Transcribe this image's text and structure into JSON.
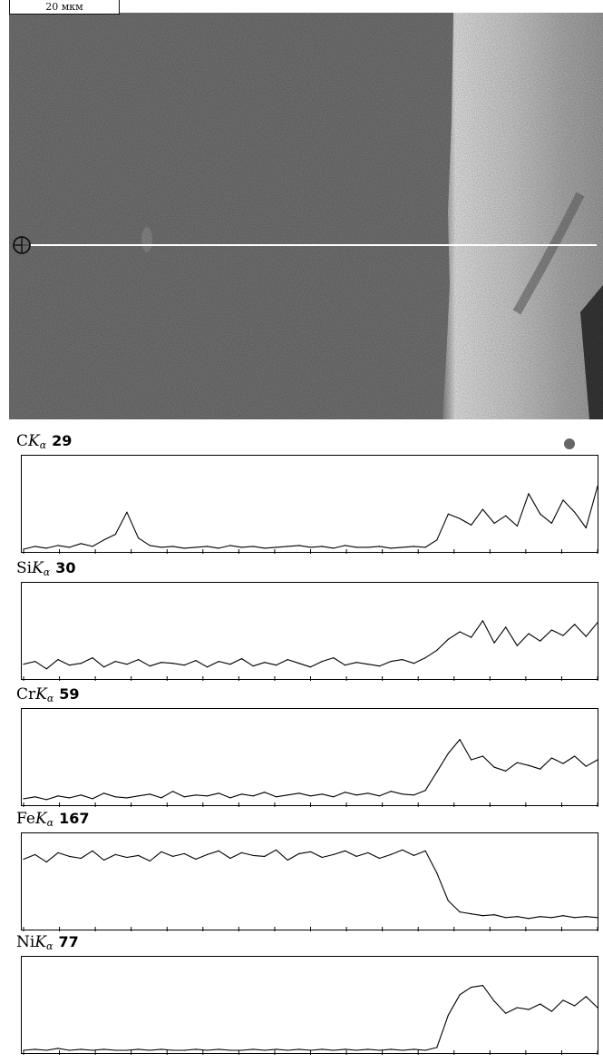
{
  "scale_bar": {
    "label": "20 мкм"
  },
  "colors": {
    "trace": "#000000",
    "scan_line": "#ffffff",
    "marker": "#666666"
  },
  "icons": {
    "scan_start": "crosshair-circle-icon",
    "marker": "dot-icon"
  },
  "chart_data": [
    {
      "type": "line",
      "element": "C",
      "line": "K",
      "line_sub": "α",
      "max_count": "29",
      "x": [
        0,
        2,
        4,
        6,
        8,
        10,
        12,
        14,
        16,
        18,
        20,
        22,
        24,
        26,
        28,
        30,
        32,
        34,
        36,
        38,
        40,
        42,
        44,
        46,
        48,
        50,
        52,
        54,
        56,
        58,
        60,
        62,
        64,
        66,
        68,
        70,
        72,
        74,
        76,
        78,
        80,
        82,
        84,
        86,
        88,
        90,
        92,
        94,
        96,
        98,
        100
      ],
      "values": [
        2,
        5,
        3,
        6,
        4,
        8,
        5,
        12,
        18,
        42,
        14,
        6,
        4,
        5,
        3,
        4,
        5,
        3,
        6,
        4,
        5,
        3,
        4,
        5,
        6,
        4,
        5,
        3,
        6,
        4,
        4,
        5,
        3,
        4,
        5,
        4,
        12,
        40,
        35,
        28,
        45,
        30,
        38,
        27,
        62,
        40,
        30,
        55,
        42,
        25,
        70
      ]
    },
    {
      "type": "line",
      "element": "Si",
      "line": "K",
      "line_sub": "α",
      "max_count": "30",
      "x": [
        0,
        2,
        4,
        6,
        8,
        10,
        12,
        14,
        16,
        18,
        20,
        22,
        24,
        26,
        28,
        30,
        32,
        34,
        36,
        38,
        40,
        42,
        44,
        46,
        48,
        50,
        52,
        54,
        56,
        58,
        60,
        62,
        64,
        66,
        68,
        70,
        72,
        74,
        76,
        78,
        80,
        82,
        84,
        86,
        88,
        90,
        92,
        94,
        96,
        98,
        100
      ],
      "values": [
        15,
        18,
        10,
        20,
        14,
        16,
        22,
        12,
        18,
        15,
        20,
        13,
        17,
        16,
        14,
        19,
        12,
        18,
        15,
        21,
        13,
        17,
        14,
        20,
        16,
        12,
        18,
        22,
        14,
        17,
        15,
        13,
        18,
        20,
        16,
        22,
        30,
        42,
        50,
        44,
        62,
        38,
        55,
        35,
        48,
        40,
        52,
        46,
        58,
        45,
        60
      ]
    },
    {
      "type": "line",
      "element": "Cr",
      "line": "K",
      "line_sub": "α",
      "max_count": "59",
      "x": [
        0,
        2,
        4,
        6,
        8,
        10,
        12,
        14,
        16,
        18,
        20,
        22,
        24,
        26,
        28,
        30,
        32,
        34,
        36,
        38,
        40,
        42,
        44,
        46,
        48,
        50,
        52,
        54,
        56,
        58,
        60,
        62,
        64,
        66,
        68,
        70,
        72,
        74,
        76,
        78,
        80,
        82,
        84,
        86,
        88,
        90,
        92,
        94,
        96,
        98,
        100
      ],
      "values": [
        6,
        8,
        5,
        9,
        7,
        10,
        6,
        12,
        8,
        7,
        9,
        11,
        7,
        14,
        8,
        10,
        9,
        12,
        7,
        11,
        9,
        13,
        8,
        10,
        12,
        9,
        11,
        8,
        13,
        10,
        12,
        9,
        14,
        11,
        10,
        15,
        35,
        55,
        70,
        48,
        52,
        40,
        36,
        45,
        42,
        38,
        50,
        44,
        52,
        41,
        48
      ]
    },
    {
      "type": "line",
      "element": "Fe",
      "line": "K",
      "line_sub": "α",
      "max_count": "167",
      "x": [
        0,
        2,
        4,
        6,
        8,
        10,
        12,
        14,
        16,
        18,
        20,
        22,
        24,
        26,
        28,
        30,
        32,
        34,
        36,
        38,
        40,
        42,
        44,
        46,
        48,
        50,
        52,
        54,
        56,
        58,
        60,
        62,
        64,
        66,
        68,
        70,
        72,
        74,
        76,
        78,
        80,
        82,
        84,
        86,
        88,
        90,
        92,
        94,
        96,
        98,
        100
      ],
      "values": [
        75,
        80,
        72,
        82,
        78,
        76,
        84,
        74,
        80,
        77,
        79,
        73,
        83,
        78,
        81,
        75,
        80,
        84,
        76,
        82,
        79,
        78,
        85,
        74,
        81,
        83,
        77,
        80,
        84,
        78,
        82,
        76,
        80,
        85,
        79,
        84,
        60,
        30,
        18,
        16,
        14,
        15,
        12,
        13,
        11,
        13,
        12,
        14,
        12,
        13,
        12
      ]
    },
    {
      "type": "line",
      "element": "Ni",
      "line": "K",
      "line_sub": "α",
      "max_count": "77",
      "x": [
        0,
        2,
        4,
        6,
        8,
        10,
        12,
        14,
        16,
        18,
        20,
        22,
        24,
        26,
        28,
        30,
        32,
        34,
        36,
        38,
        40,
        42,
        44,
        46,
        48,
        50,
        52,
        54,
        56,
        58,
        60,
        62,
        64,
        66,
        68,
        70,
        72,
        74,
        76,
        78,
        80,
        82,
        84,
        86,
        88,
        90,
        92,
        94,
        96,
        98,
        100
      ],
      "values": [
        2,
        3,
        2,
        4,
        2,
        3,
        2,
        3,
        2,
        2,
        3,
        2,
        3,
        2,
        2,
        3,
        2,
        3,
        2,
        2,
        3,
        2,
        3,
        2,
        3,
        2,
        3,
        2,
        3,
        2,
        3,
        2,
        3,
        2,
        3,
        2,
        5,
        40,
        62,
        70,
        72,
        55,
        42,
        48,
        46,
        52,
        44,
        56,
        50,
        60,
        48
      ]
    }
  ]
}
